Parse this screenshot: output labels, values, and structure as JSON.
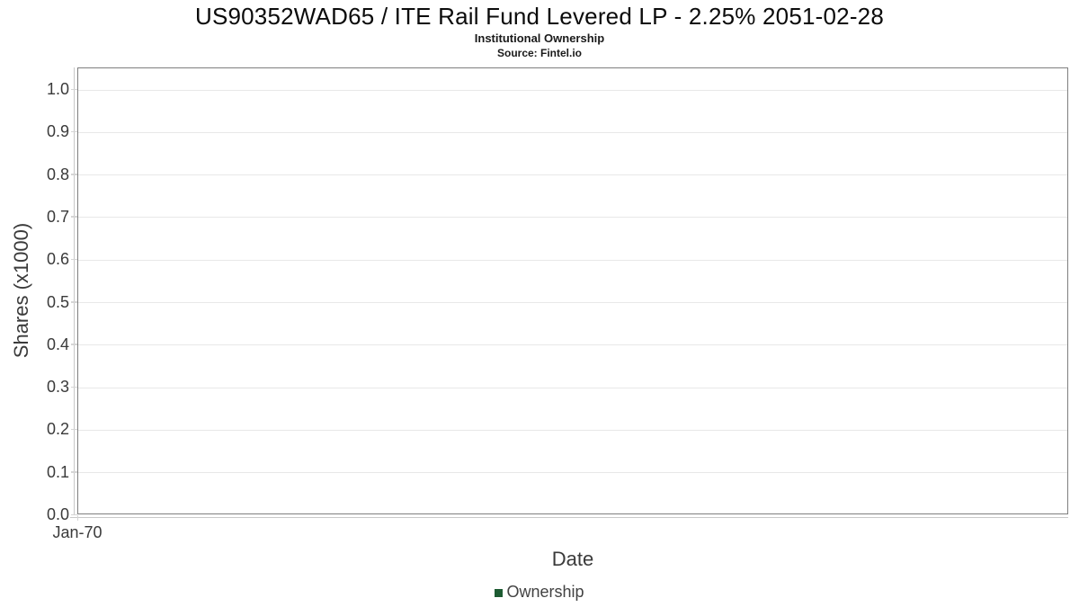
{
  "header": {
    "title": "US90352WAD65 / ITE Rail Fund Levered LP - 2.25% 2051-02-28",
    "subtitle": "Institutional Ownership",
    "source": "Source: Fintel.io"
  },
  "axes": {
    "x_label": "Date",
    "y_label": "Shares (x1000)"
  },
  "legend": {
    "items": [
      {
        "label": "Ownership",
        "color": "#1d5b32"
      }
    ]
  },
  "chart_data": {
    "type": "line",
    "title": "US90352WAD65 / ITE Rail Fund Levered LP - 2.25% 2051-02-28",
    "subtitle": "Institutional Ownership",
    "source": "Source: Fintel.io",
    "xlabel": "Date",
    "ylabel": "Shares (x1000)",
    "x_tick_labels": [
      "Jan-70"
    ],
    "y_tick_labels": [
      "0.0",
      "0.1",
      "0.2",
      "0.3",
      "0.4",
      "0.5",
      "0.6",
      "0.7",
      "0.8",
      "0.9",
      "1.0"
    ],
    "y_tick_values": [
      0,
      0.1,
      0.2,
      0.3,
      0.4,
      0.5,
      0.6,
      0.7,
      0.8,
      0.9,
      1.0
    ],
    "ylim": [
      0.0,
      1.05
    ],
    "grid": true,
    "legend_position": "bottom",
    "series": [
      {
        "name": "Ownership",
        "color": "#1d5b32",
        "x": [],
        "values": []
      }
    ],
    "colors": {
      "gridline": "#e8e8e8",
      "axis_border": "#7f7f7f",
      "tick_mark": "#d5d5d5",
      "secondary_axis_line": "#c9c9c9",
      "tick_label": "#3a3a3a"
    }
  }
}
